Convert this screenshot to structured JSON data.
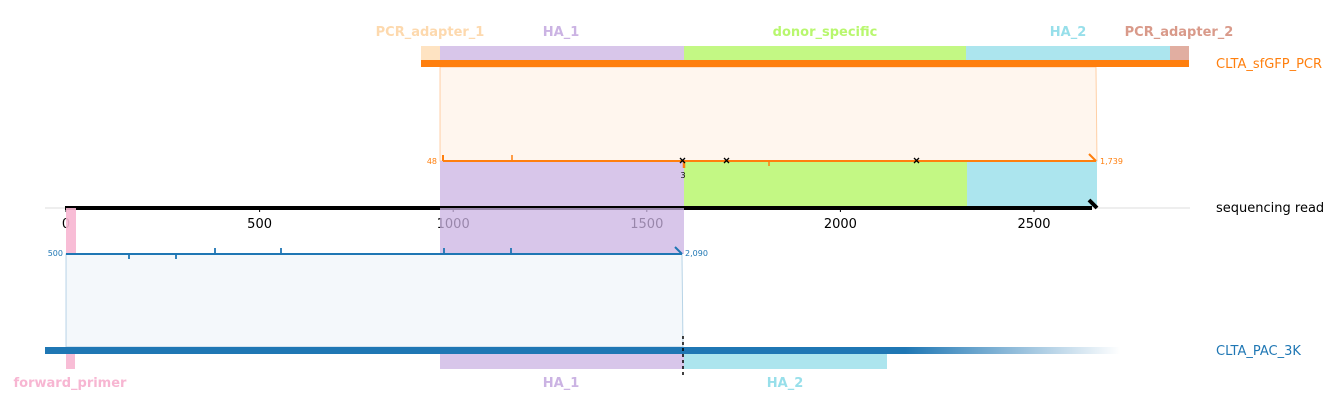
{
  "read": {
    "label": "sequencing read",
    "axis_ticks": [
      0,
      500,
      1000,
      1500,
      2000,
      2500
    ],
    "color": "#000000"
  },
  "top_ref": {
    "name": "CLTA_sfGFP_PCR",
    "color": "#ff7f0e",
    "features": [
      {
        "name": "PCR_adapter_1",
        "color": "#fdd9ae"
      },
      {
        "name": "HA_1",
        "color": "#cbb3e3"
      },
      {
        "name": "donor_specific",
        "color": "#b8f76e"
      },
      {
        "name": "HA_2",
        "color": "#97dfea"
      },
      {
        "name": "PCR_adapter_2",
        "color": "#d99a8a"
      }
    ],
    "alignment": {
      "ref_start_label": "48",
      "ref_end_label": "1,739",
      "indel_label": "3"
    }
  },
  "bottom_ref": {
    "name": "CLTA_PAC_3K",
    "color": "#1f77b4",
    "features": [
      {
        "name": "forward_primer",
        "color": "#f7b6d2"
      },
      {
        "name": "HA_1",
        "color": "#cbb3e3"
      },
      {
        "name": "HA_2",
        "color": "#97dfea"
      }
    ],
    "alignment": {
      "ref_start_label": "500",
      "ref_end_label": "2,090"
    }
  }
}
